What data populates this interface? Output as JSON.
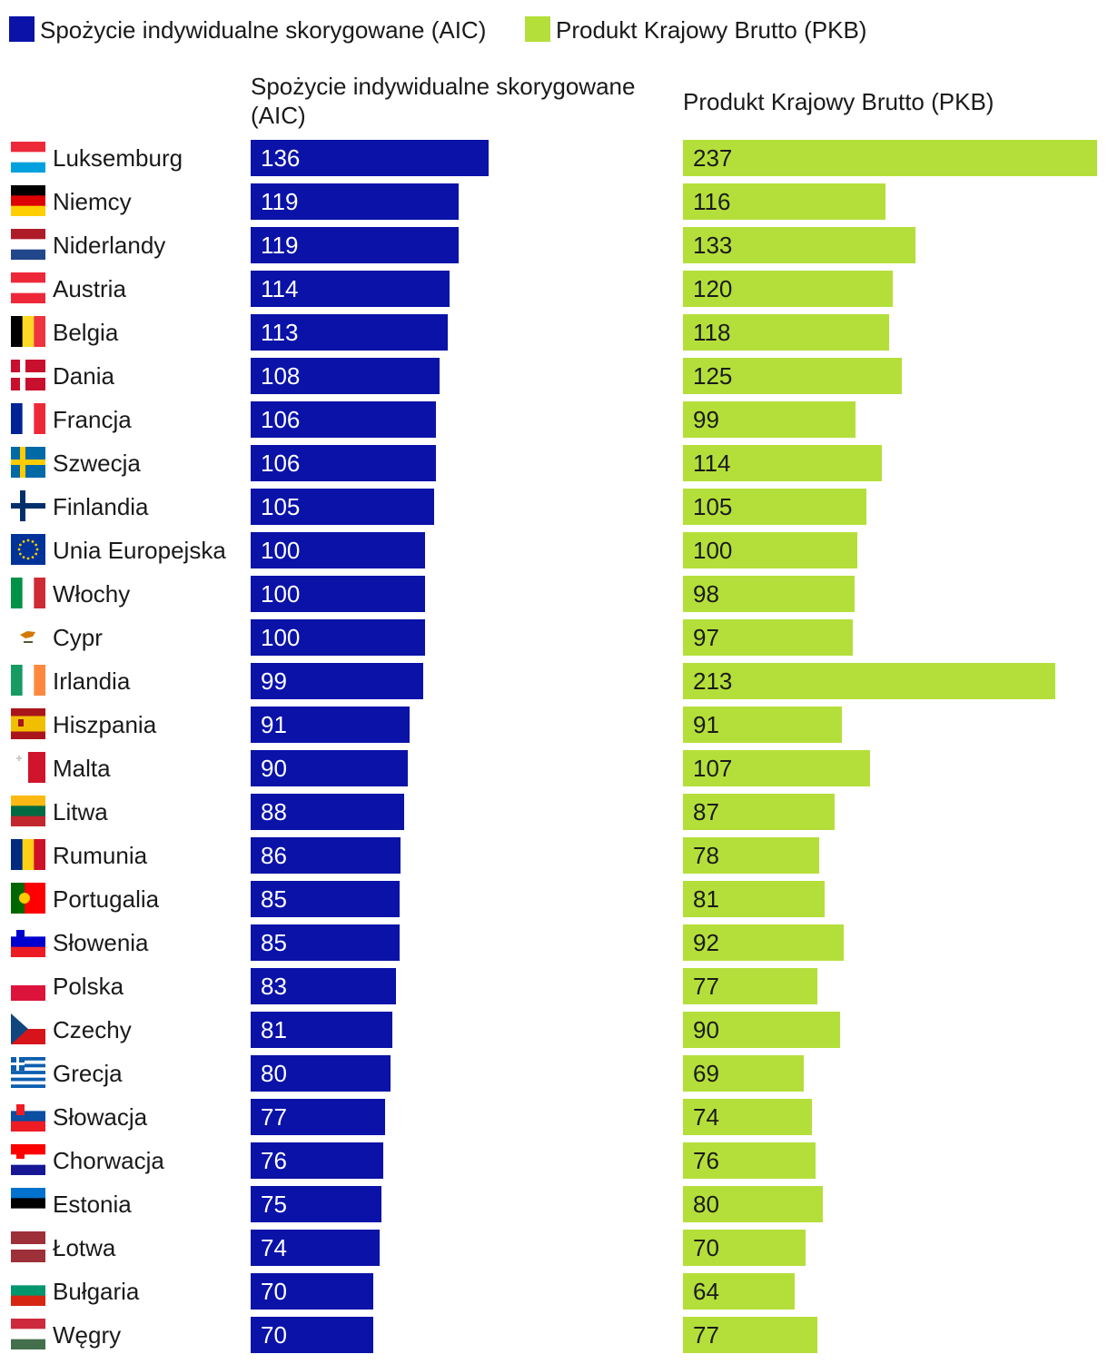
{
  "colors": {
    "aic": "#0a12a8",
    "pkb": "#b4df3a"
  },
  "chart_data": {
    "type": "bar",
    "orientation": "horizontal",
    "legend": [
      {
        "key": "aic",
        "label": "Spożycie indywidualne skorygowane (AIC)"
      },
      {
        "key": "pkb",
        "label": "Produkt Krajowy Brutto (PKB)"
      }
    ],
    "column_headers": {
      "aic": [
        "Spożycie indywidualne skorygowane",
        "(AIC)"
      ],
      "pkb": "Produkt Krajowy Brutto (PKB)"
    },
    "categories": [
      "Luksemburg",
      "Niemcy",
      "Niderlandy",
      "Austria",
      "Belgia",
      "Dania",
      "Francja",
      "Szwecja",
      "Finlandia",
      "Unia Europejska",
      "Włochy",
      "Cypr",
      "Irlandia",
      "Hiszpania",
      "Malta",
      "Litwa",
      "Rumunia",
      "Portugalia",
      "Słowenia",
      "Polska",
      "Czechy",
      "Grecja",
      "Słowacja",
      "Chorwacja",
      "Estonia",
      "Łotwa",
      "Bułgaria",
      "Węgry"
    ],
    "series": [
      {
        "key": "aic",
        "name": "Spożycie indywidualne skorygowane (AIC)",
        "values": [
          136,
          119,
          119,
          114,
          113,
          108,
          106,
          106,
          105,
          100,
          100,
          100,
          99,
          91,
          90,
          88,
          86,
          85,
          85,
          83,
          81,
          80,
          77,
          76,
          75,
          74,
          70,
          70
        ]
      },
      {
        "key": "pkb",
        "name": "Produkt Krajowy Brutto (PKB)",
        "values": [
          237,
          116,
          133,
          120,
          118,
          125,
          99,
          114,
          105,
          100,
          98,
          97,
          213,
          91,
          107,
          87,
          78,
          81,
          92,
          77,
          90,
          69,
          74,
          76,
          80,
          70,
          64,
          77
        ]
      }
    ],
    "xlim": [
      0,
      237
    ]
  },
  "flags": [
    {
      "type": "h",
      "stripes": [
        "#ED2939",
        "#ffffff",
        "#00A1DE"
      ]
    },
    {
      "type": "h",
      "stripes": [
        "#000000",
        "#DD0000",
        "#FFCE00"
      ]
    },
    {
      "type": "h",
      "stripes": [
        "#AE1C28",
        "#ffffff",
        "#21468B"
      ]
    },
    {
      "type": "h",
      "stripes": [
        "#ED2939",
        "#ffffff",
        "#ED2939"
      ]
    },
    {
      "type": "v",
      "stripes": [
        "#000000",
        "#FDDA24",
        "#EF3340"
      ]
    },
    {
      "type": "cross",
      "bg": "#C8102E",
      "fg": "#ffffff"
    },
    {
      "type": "v",
      "stripes": [
        "#002395",
        "#ffffff",
        "#ED2939"
      ]
    },
    {
      "type": "cross",
      "bg": "#006AA7",
      "fg": "#FECC00"
    },
    {
      "type": "cross",
      "bg": "#ffffff",
      "fg": "#002F6C"
    },
    {
      "type": "eu",
      "bg": "#003399",
      "fg": "#FFCC00"
    },
    {
      "type": "v",
      "stripes": [
        "#009246",
        "#ffffff",
        "#CE2B37"
      ]
    },
    {
      "type": "cyprus",
      "bg": "#ffffff",
      "fg": "#D57800"
    },
    {
      "type": "v",
      "stripes": [
        "#169B62",
        "#ffffff",
        "#FF883E"
      ]
    },
    {
      "type": "spain",
      "stripes": [
        "#AA151B",
        "#F1BF00",
        "#AA151B"
      ]
    },
    {
      "type": "malta",
      "stripes": [
        "#ffffff",
        "#CF142B"
      ]
    },
    {
      "type": "h",
      "stripes": [
        "#FDB913",
        "#006A44",
        "#C1272D"
      ]
    },
    {
      "type": "v",
      "stripes": [
        "#002B7F",
        "#FCD116",
        "#CE1126"
      ]
    },
    {
      "type": "portugal",
      "stripes": [
        "#006600",
        "#FF0000"
      ]
    },
    {
      "type": "h",
      "stripes": [
        "#ffffff",
        "#0000CE",
        "#ED1C24"
      ],
      "emblem": "#0000CE"
    },
    {
      "type": "h",
      "stripes": [
        "#ffffff",
        "#DC143C"
      ]
    },
    {
      "type": "czech",
      "stripes": [
        "#ffffff",
        "#D7141A",
        "#11457E"
      ]
    },
    {
      "type": "greece",
      "bg": "#0D5EAF",
      "fg": "#ffffff"
    },
    {
      "type": "h",
      "stripes": [
        "#ffffff",
        "#0B4EA2",
        "#EE1C25"
      ],
      "emblem": "#EE1C25"
    },
    {
      "type": "h",
      "stripes": [
        "#FF0000",
        "#ffffff",
        "#171796"
      ],
      "emblem": "#FF0000"
    },
    {
      "type": "h",
      "stripes": [
        "#0072CE",
        "#000000",
        "#ffffff"
      ]
    },
    {
      "type": "latvia",
      "stripes": [
        "#9E3039",
        "#ffffff",
        "#9E3039"
      ]
    },
    {
      "type": "h",
      "stripes": [
        "#ffffff",
        "#00966E",
        "#D62612"
      ]
    },
    {
      "type": "h",
      "stripes": [
        "#CD2A3E",
        "#ffffff",
        "#436F4D"
      ]
    }
  ]
}
